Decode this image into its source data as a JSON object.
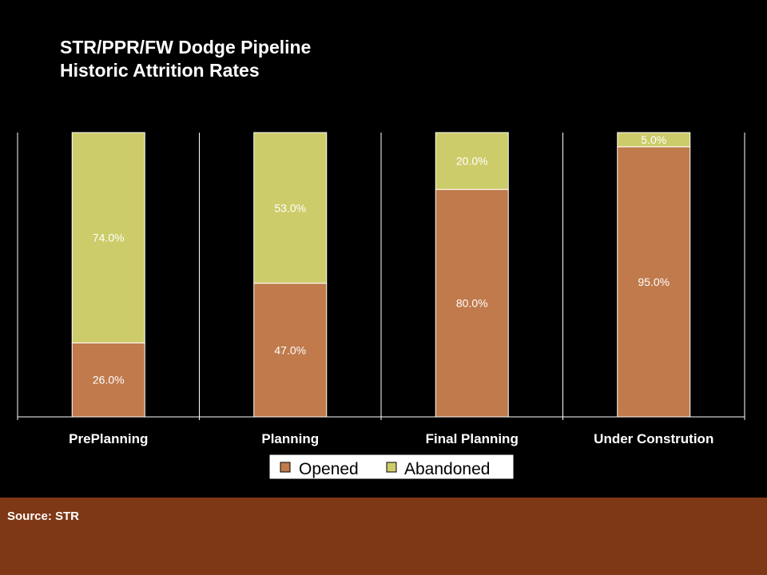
{
  "title_line1": "STR/PPR/FW Dodge Pipeline",
  "title_line2": "Historic Attrition Rates",
  "source": "Source: STR",
  "colors": {
    "opened": "#c07a4c",
    "abandoned": "#cdcc6a",
    "footer": "#7f3815",
    "background": "#000000"
  },
  "chart_data": {
    "type": "bar",
    "stacked": true,
    "categories": [
      "PrePlanning",
      "Planning",
      "Final Planning",
      "Under Constrution"
    ],
    "series": [
      {
        "name": "Opened",
        "values": [
          26.0,
          47.0,
          80.0,
          95.0
        ],
        "labels": [
          "26.0%",
          "47.0%",
          "80.0%",
          "95.0%"
        ]
      },
      {
        "name": "Abandoned",
        "values": [
          74.0,
          53.0,
          20.0,
          5.0
        ],
        "labels": [
          "74.0%",
          "53.0%",
          "20.0%",
          "5.0%"
        ]
      }
    ],
    "ylim": [
      0,
      100
    ],
    "grid": false,
    "legend": "bottom"
  }
}
